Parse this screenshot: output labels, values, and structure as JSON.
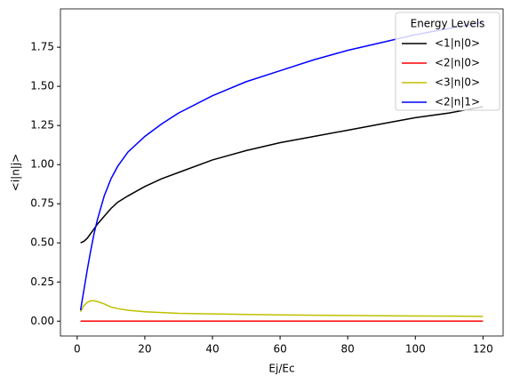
{
  "chart_data": {
    "type": "line",
    "xlabel": "Ej/Ec",
    "ylabel": "<i|n|j>",
    "x": [
      1,
      2,
      3,
      4,
      5,
      6,
      8,
      10,
      12,
      15,
      20,
      25,
      30,
      40,
      50,
      60,
      70,
      80,
      90,
      100,
      110,
      120
    ],
    "series": [
      {
        "name": "<1|n|0>",
        "color": "#000000",
        "values": [
          0.5,
          0.51,
          0.53,
          0.56,
          0.59,
          0.62,
          0.67,
          0.72,
          0.76,
          0.8,
          0.86,
          0.91,
          0.95,
          1.03,
          1.09,
          1.14,
          1.18,
          1.22,
          1.26,
          1.3,
          1.33,
          1.37
        ]
      },
      {
        "name": "<2|n|0>",
        "color": "#ff0000",
        "values": [
          0,
          0,
          0,
          0,
          0,
          0,
          0,
          0,
          0,
          0,
          0,
          0,
          0,
          0,
          0,
          0,
          0,
          0,
          0,
          0,
          0,
          0
        ]
      },
      {
        "name": "<3|n|0>",
        "color": "#bfbf00",
        "values": [
          0.06,
          0.1,
          0.12,
          0.13,
          0.13,
          0.125,
          0.11,
          0.09,
          0.08,
          0.07,
          0.06,
          0.055,
          0.05,
          0.046,
          0.043,
          0.04,
          0.038,
          0.036,
          0.034,
          0.033,
          0.032,
          0.03
        ]
      },
      {
        "name": "<2|n|1>",
        "color": "#0000ff",
        "values": [
          0.07,
          0.2,
          0.33,
          0.45,
          0.56,
          0.65,
          0.8,
          0.91,
          0.99,
          1.08,
          1.18,
          1.26,
          1.33,
          1.44,
          1.53,
          1.6,
          1.67,
          1.73,
          1.78,
          1.83,
          1.87,
          1.91
        ]
      }
    ],
    "xlim": [
      -4.95,
      125.95
    ],
    "xticks": [
      0,
      20,
      40,
      60,
      80,
      100,
      120
    ],
    "ylim": [
      -0.095,
      1.995
    ],
    "yticks": [
      {
        "value": 0,
        "label": "0.00"
      },
      {
        "value": 0.25,
        "label": "0.25"
      },
      {
        "value": 0.5,
        "label": "0.50"
      },
      {
        "value": 0.75,
        "label": "0.75"
      },
      {
        "value": 1,
        "label": "1.00"
      },
      {
        "value": 1.25,
        "label": "1.25"
      },
      {
        "value": 1.5,
        "label": "1.50"
      },
      {
        "value": 1.75,
        "label": "1.75"
      }
    ],
    "legend_title": "Energy Levels",
    "legend_position": "upper right"
  }
}
